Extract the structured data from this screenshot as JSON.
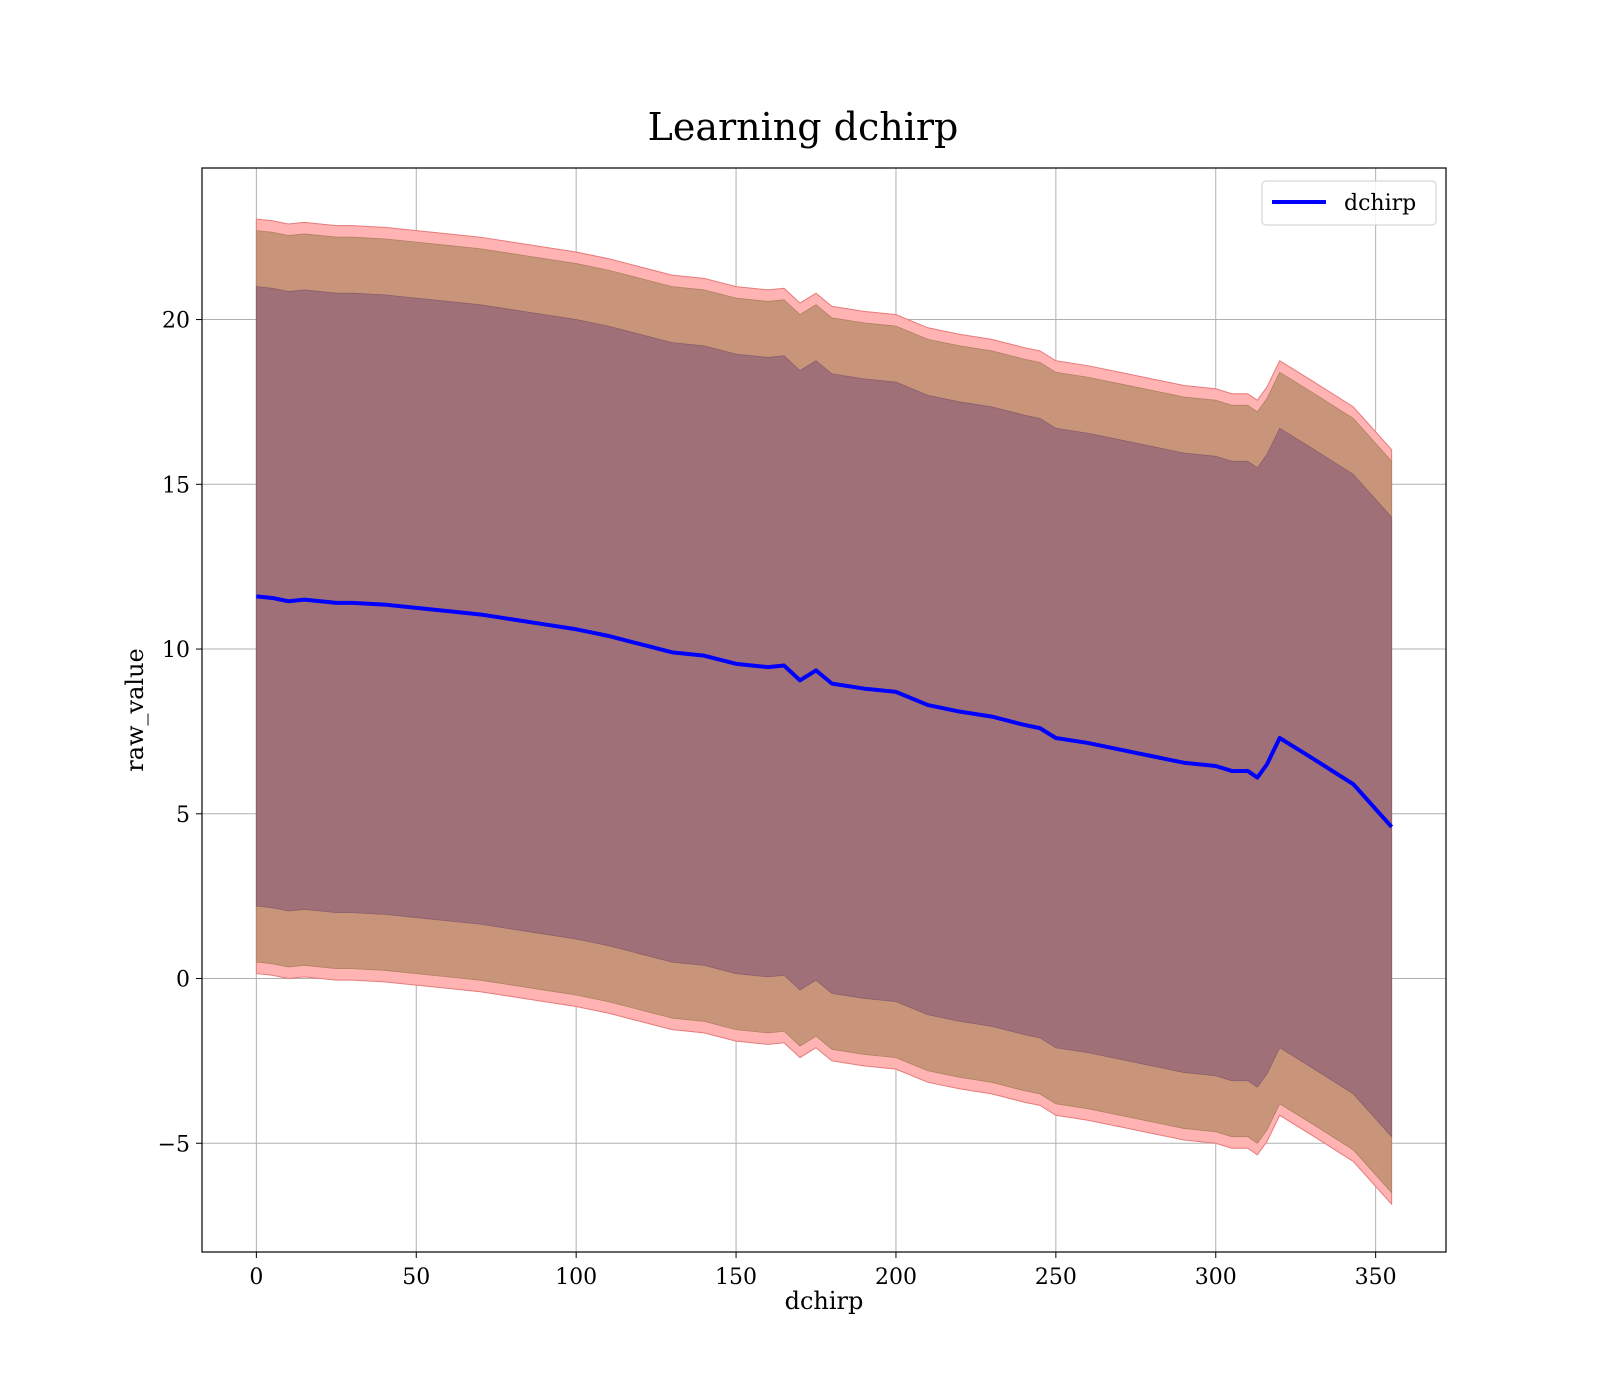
{
  "chart_data": {
    "type": "line",
    "title": "Learning dchirp",
    "xlabel": "dchirp",
    "ylabel": "raw_value",
    "xlim": [
      -17,
      372
    ],
    "ylim": [
      -8.3,
      24.6
    ],
    "xticks": [
      0,
      50,
      100,
      150,
      200,
      250,
      300,
      350
    ],
    "xtick_labels": [
      "0",
      "50",
      "100",
      "150",
      "200",
      "250",
      "300",
      "350"
    ],
    "yticks": [
      -5,
      0,
      5,
      10,
      15,
      20
    ],
    "ytick_labels": [
      "−5",
      "0",
      "5",
      "10",
      "15",
      "20"
    ],
    "grid": true,
    "legend_position": "top-right",
    "legend": [
      "dchirp"
    ],
    "colors": {
      "line": "#0000ff",
      "band_outer": "#ffb3b3",
      "band_middle": "#c9957a",
      "band_inner": "#a07078",
      "band_outline": "#e87a7a"
    },
    "series": [
      {
        "name": "dchirp",
        "x": [
          0,
          5,
          10,
          15,
          20,
          25,
          30,
          40,
          50,
          60,
          70,
          80,
          90,
          100,
          110,
          120,
          130,
          140,
          150,
          160,
          165,
          170,
          175,
          180,
          190,
          200,
          210,
          220,
          230,
          240,
          245,
          250,
          260,
          270,
          280,
          285,
          290,
          300,
          305,
          310,
          313,
          316,
          320,
          330,
          343,
          355
        ],
        "y": [
          11.6,
          11.55,
          11.45,
          11.5,
          11.45,
          11.4,
          11.4,
          11.35,
          11.25,
          11.15,
          11.05,
          10.9,
          10.75,
          10.6,
          10.4,
          10.15,
          9.9,
          9.8,
          9.55,
          9.45,
          9.5,
          9.05,
          9.35,
          8.95,
          8.8,
          8.7,
          8.3,
          8.1,
          7.95,
          7.7,
          7.6,
          7.3,
          7.15,
          6.95,
          6.75,
          6.65,
          6.55,
          6.45,
          6.3,
          6.3,
          6.1,
          6.5,
          7.3,
          6.7,
          5.9,
          4.6
        ],
        "band_inner_half_width": 9.4,
        "band_middle_half_width": 11.1,
        "band_outer_half_width": 11.45
      }
    ]
  }
}
